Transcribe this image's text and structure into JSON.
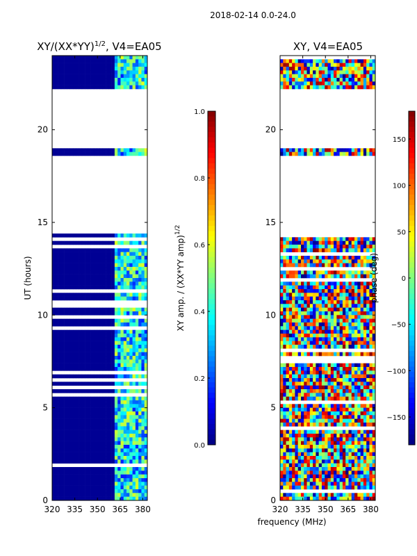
{
  "suptitle": "2018-02-14 0.0-24.0",
  "xlabel": "frequency (MHz)",
  "chart_data": [
    {
      "type": "heatmap",
      "title_main": "XY/(XX*YY)",
      "title_sup": "1/2",
      "title_suffix": ", V4=EA05",
      "ylabel": "UT (hours)",
      "xlim": [
        320,
        383
      ],
      "ylim": [
        0,
        24
      ],
      "xticks": [
        320,
        335,
        350,
        365,
        380
      ],
      "yticks": [
        0,
        5,
        10,
        15,
        20
      ],
      "colorbar": {
        "label_main": "XY amp. / (XX*YY amp)",
        "label_sup": "1/2",
        "range": [
          0.0,
          1.0
        ],
        "ticks": [
          0.0,
          0.2,
          0.4,
          0.6,
          0.8,
          1.0
        ],
        "tick_labels": [
          "0.0",
          "0.2",
          "0.4",
          "0.6",
          "0.8",
          "1.0"
        ]
      },
      "data_gaps_hours": [
        [
          14.4,
          18.6
        ],
        [
          18.95,
          22.2
        ]
      ]
    },
    {
      "type": "heatmap",
      "title_main": "XY, V4=EA05",
      "xlim": [
        320,
        383
      ],
      "ylim": [
        0,
        24
      ],
      "xticks": [
        320,
        335,
        350,
        365,
        380
      ],
      "yticks": [
        0,
        5,
        10,
        15,
        20
      ],
      "colorbar": {
        "label_main": "phase (deg)",
        "range": [
          -180,
          180
        ],
        "ticks": [
          -150,
          -100,
          -50,
          0,
          50,
          100,
          150
        ],
        "tick_labels": [
          "−150",
          "−100",
          "−50",
          "0",
          "50",
          "100",
          "150"
        ]
      },
      "data_gaps_hours": [
        [
          14.4,
          18.6
        ],
        [
          18.95,
          22.2
        ]
      ]
    }
  ]
}
